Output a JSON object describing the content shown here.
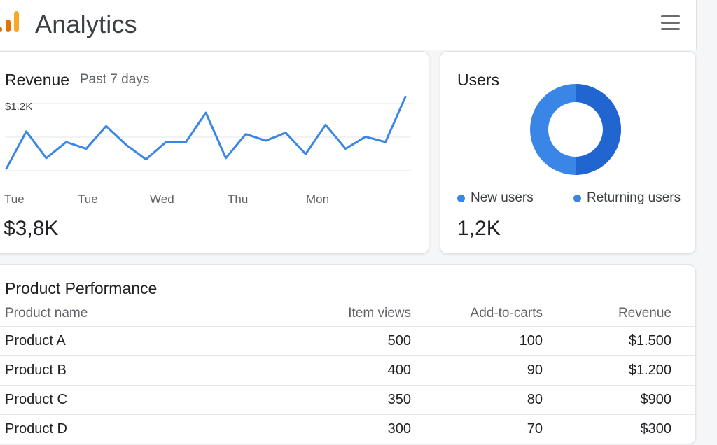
{
  "app": {
    "title": "Analytics"
  },
  "colors": {
    "accent_blue": "#3a86e6",
    "dark_blue": "#2166d0",
    "logo_orange": "#f9a825",
    "logo_dark_orange": "#e37400"
  },
  "icons": {
    "logo": "analytics-logo-icon",
    "menu": "hamburger-menu-icon"
  },
  "revenue": {
    "title": "Revenue",
    "subtitle": "Past 7 days",
    "total": "$3,8K",
    "y_tick": "$1.2K",
    "x_labels": [
      "Tue",
      "Tue",
      "Wed",
      "Thu",
      "Mon"
    ]
  },
  "chart_data": {
    "type": "line",
    "title": "Revenue",
    "subtitle": "Past 7 days",
    "y_ticks": [
      "$1.2K"
    ],
    "x_tick_labels": [
      "Tue",
      "Tue",
      "Wed",
      "Thu",
      "Mon"
    ],
    "series": [
      {
        "values": [
          880,
          1020,
          920,
          980,
          955,
          1040,
          970,
          915,
          980,
          980,
          1090,
          920,
          1010,
          985,
          1015,
          935,
          1045,
          955,
          1000,
          980,
          1150
        ]
      }
    ],
    "ylim": [
      820,
      1240
    ],
    "grid": true
  },
  "users": {
    "title": "Users",
    "total": "1,2K",
    "legend": [
      "New users",
      "Returning users"
    ],
    "shares": [
      0.5,
      0.5
    ]
  },
  "products": {
    "title": "Product Performance",
    "columns": [
      "Product name",
      "Item views",
      "Add-to-carts",
      "Revenue"
    ],
    "rows": [
      [
        "Product A",
        "500",
        "100",
        "$1.500"
      ],
      [
        "Product B",
        "400",
        "90",
        "$1.200"
      ],
      [
        "Product C",
        "350",
        "80",
        "$900"
      ],
      [
        "Product D",
        "300",
        "70",
        "$300"
      ]
    ]
  }
}
